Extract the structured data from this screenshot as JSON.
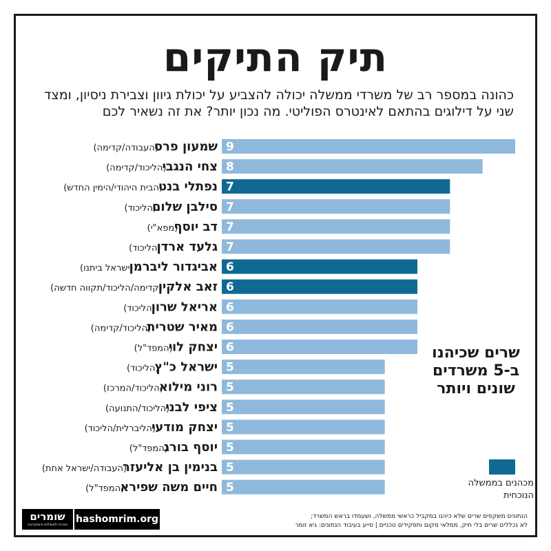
{
  "title": "תיק התיקים",
  "subtitle": "כהונה במספר רב של משרדי ממשלה יכולה להצביע על יכולת גיוון וצבירת ניסיון, ומצד שני על דילוגים בהתאם לאינטרס הפוליטי. מה נכון יותר? את זה נשאיר לכם",
  "side_note": "שרים שכיהנו ב-5 משרדים שונים ויותר",
  "legend": {
    "label": "מכהנים בממשלה הנוכחית"
  },
  "footnote": {
    "line1": "הנתונים משקפים שרים שלא כיהנו במקביל כראשי ממשלה, ושעמדו בראש המשרד;",
    "line2": "לא נכללים שרים בלי תיק, ממלאי מקום ותפקידים טכניים | סייע בעיבוד הנתונים: גיא זומר"
  },
  "logo": {
    "text": "שומרים",
    "sub": "המרכז למשילות ודמוקרטיה"
  },
  "site": "hashomrim.org",
  "colors": {
    "current": "#0f6a93",
    "other": "#8fb9dc",
    "text": "#1a1a1a"
  },
  "chart_data": {
    "type": "bar",
    "orientation": "horizontal",
    "xlim": [
      0,
      9
    ],
    "categories": [
      "שמעון פרס",
      "צחי הנגבי",
      "נפתלי בנט",
      "סילבן שלום",
      "דב יוסף",
      "גלעד ארדן",
      "אביגדור ליברמן",
      "זאב אלקין",
      "אריאל שרון",
      "מאיר שטרית",
      "יצחק לוי",
      "ישראל כ\"ץ",
      "רוני מילוא",
      "ציפי לבני",
      "יצחק מודעי",
      "יוסף בורג",
      "בנימין בן אליעזר",
      "חיים משה שפירא"
    ],
    "parties": [
      "(העבודה/קדימה)",
      "(הליכוד/קדימה)",
      "(הבית היהודי/הימין החדש)",
      "(הליכוד)",
      "(מפא\"י)",
      "(הליכוד)",
      "(ישראל ביתנו)",
      "(קדימה/הליכוד/תקווה חדשה)",
      "(הליכוד)",
      "(הליכוד/קדימה)",
      "(המפד\"ל)",
      "(הליכוד)",
      "(הליכוד/המרכז)",
      "(הליכוד/התנועה)",
      "(הליברלית/הליכוד)",
      "(המפד\"ל)",
      "(העבודה/ישראל אחת)",
      "(המפד\"ל)"
    ],
    "values": [
      9,
      8,
      7,
      7,
      7,
      7,
      6,
      6,
      6,
      6,
      6,
      5,
      5,
      5,
      5,
      5,
      5,
      5
    ],
    "current_government": [
      false,
      false,
      true,
      false,
      false,
      false,
      true,
      true,
      false,
      false,
      false,
      false,
      false,
      false,
      false,
      false,
      false,
      false
    ]
  }
}
